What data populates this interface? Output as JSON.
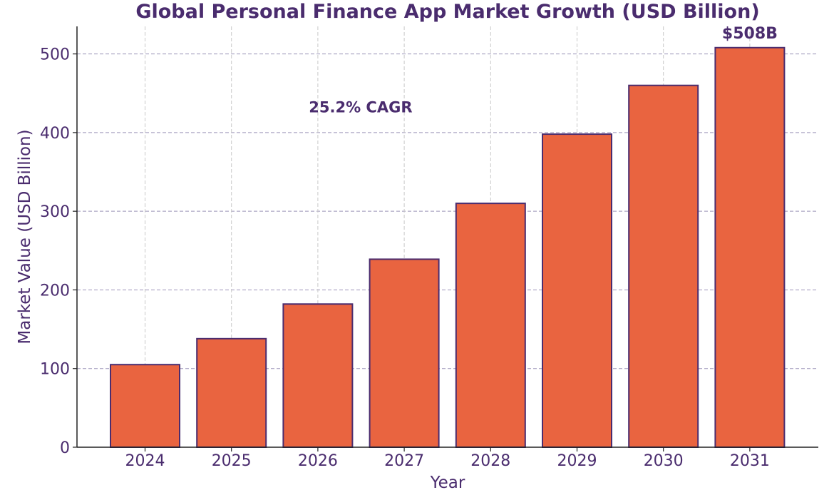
{
  "chart_data": {
    "type": "bar",
    "title": "Global Personal Finance App Market Growth (USD Billion)",
    "xlabel": "Year",
    "ylabel": "Market Value (USD Billion)",
    "categories": [
      "2024",
      "2025",
      "2026",
      "2027",
      "2028",
      "2029",
      "2030",
      "2031"
    ],
    "values": [
      105,
      138,
      182,
      239,
      310,
      398,
      460,
      508
    ],
    "ylim": [
      0,
      535
    ],
    "yticks": [
      0,
      100,
      200,
      300,
      400,
      500
    ],
    "grid": true,
    "annotations": [
      {
        "text": "25.2% CAGR",
        "category": "2026",
        "y": 432
      }
    ],
    "data_labels": [
      {
        "text": "$508B",
        "category": "2031"
      }
    ],
    "colors": {
      "bar_fill": "#e96440",
      "bar_edge": "#4a2c6e",
      "text": "#4a2c6e",
      "grid": "#9b93b8",
      "axis": "#222222"
    }
  }
}
